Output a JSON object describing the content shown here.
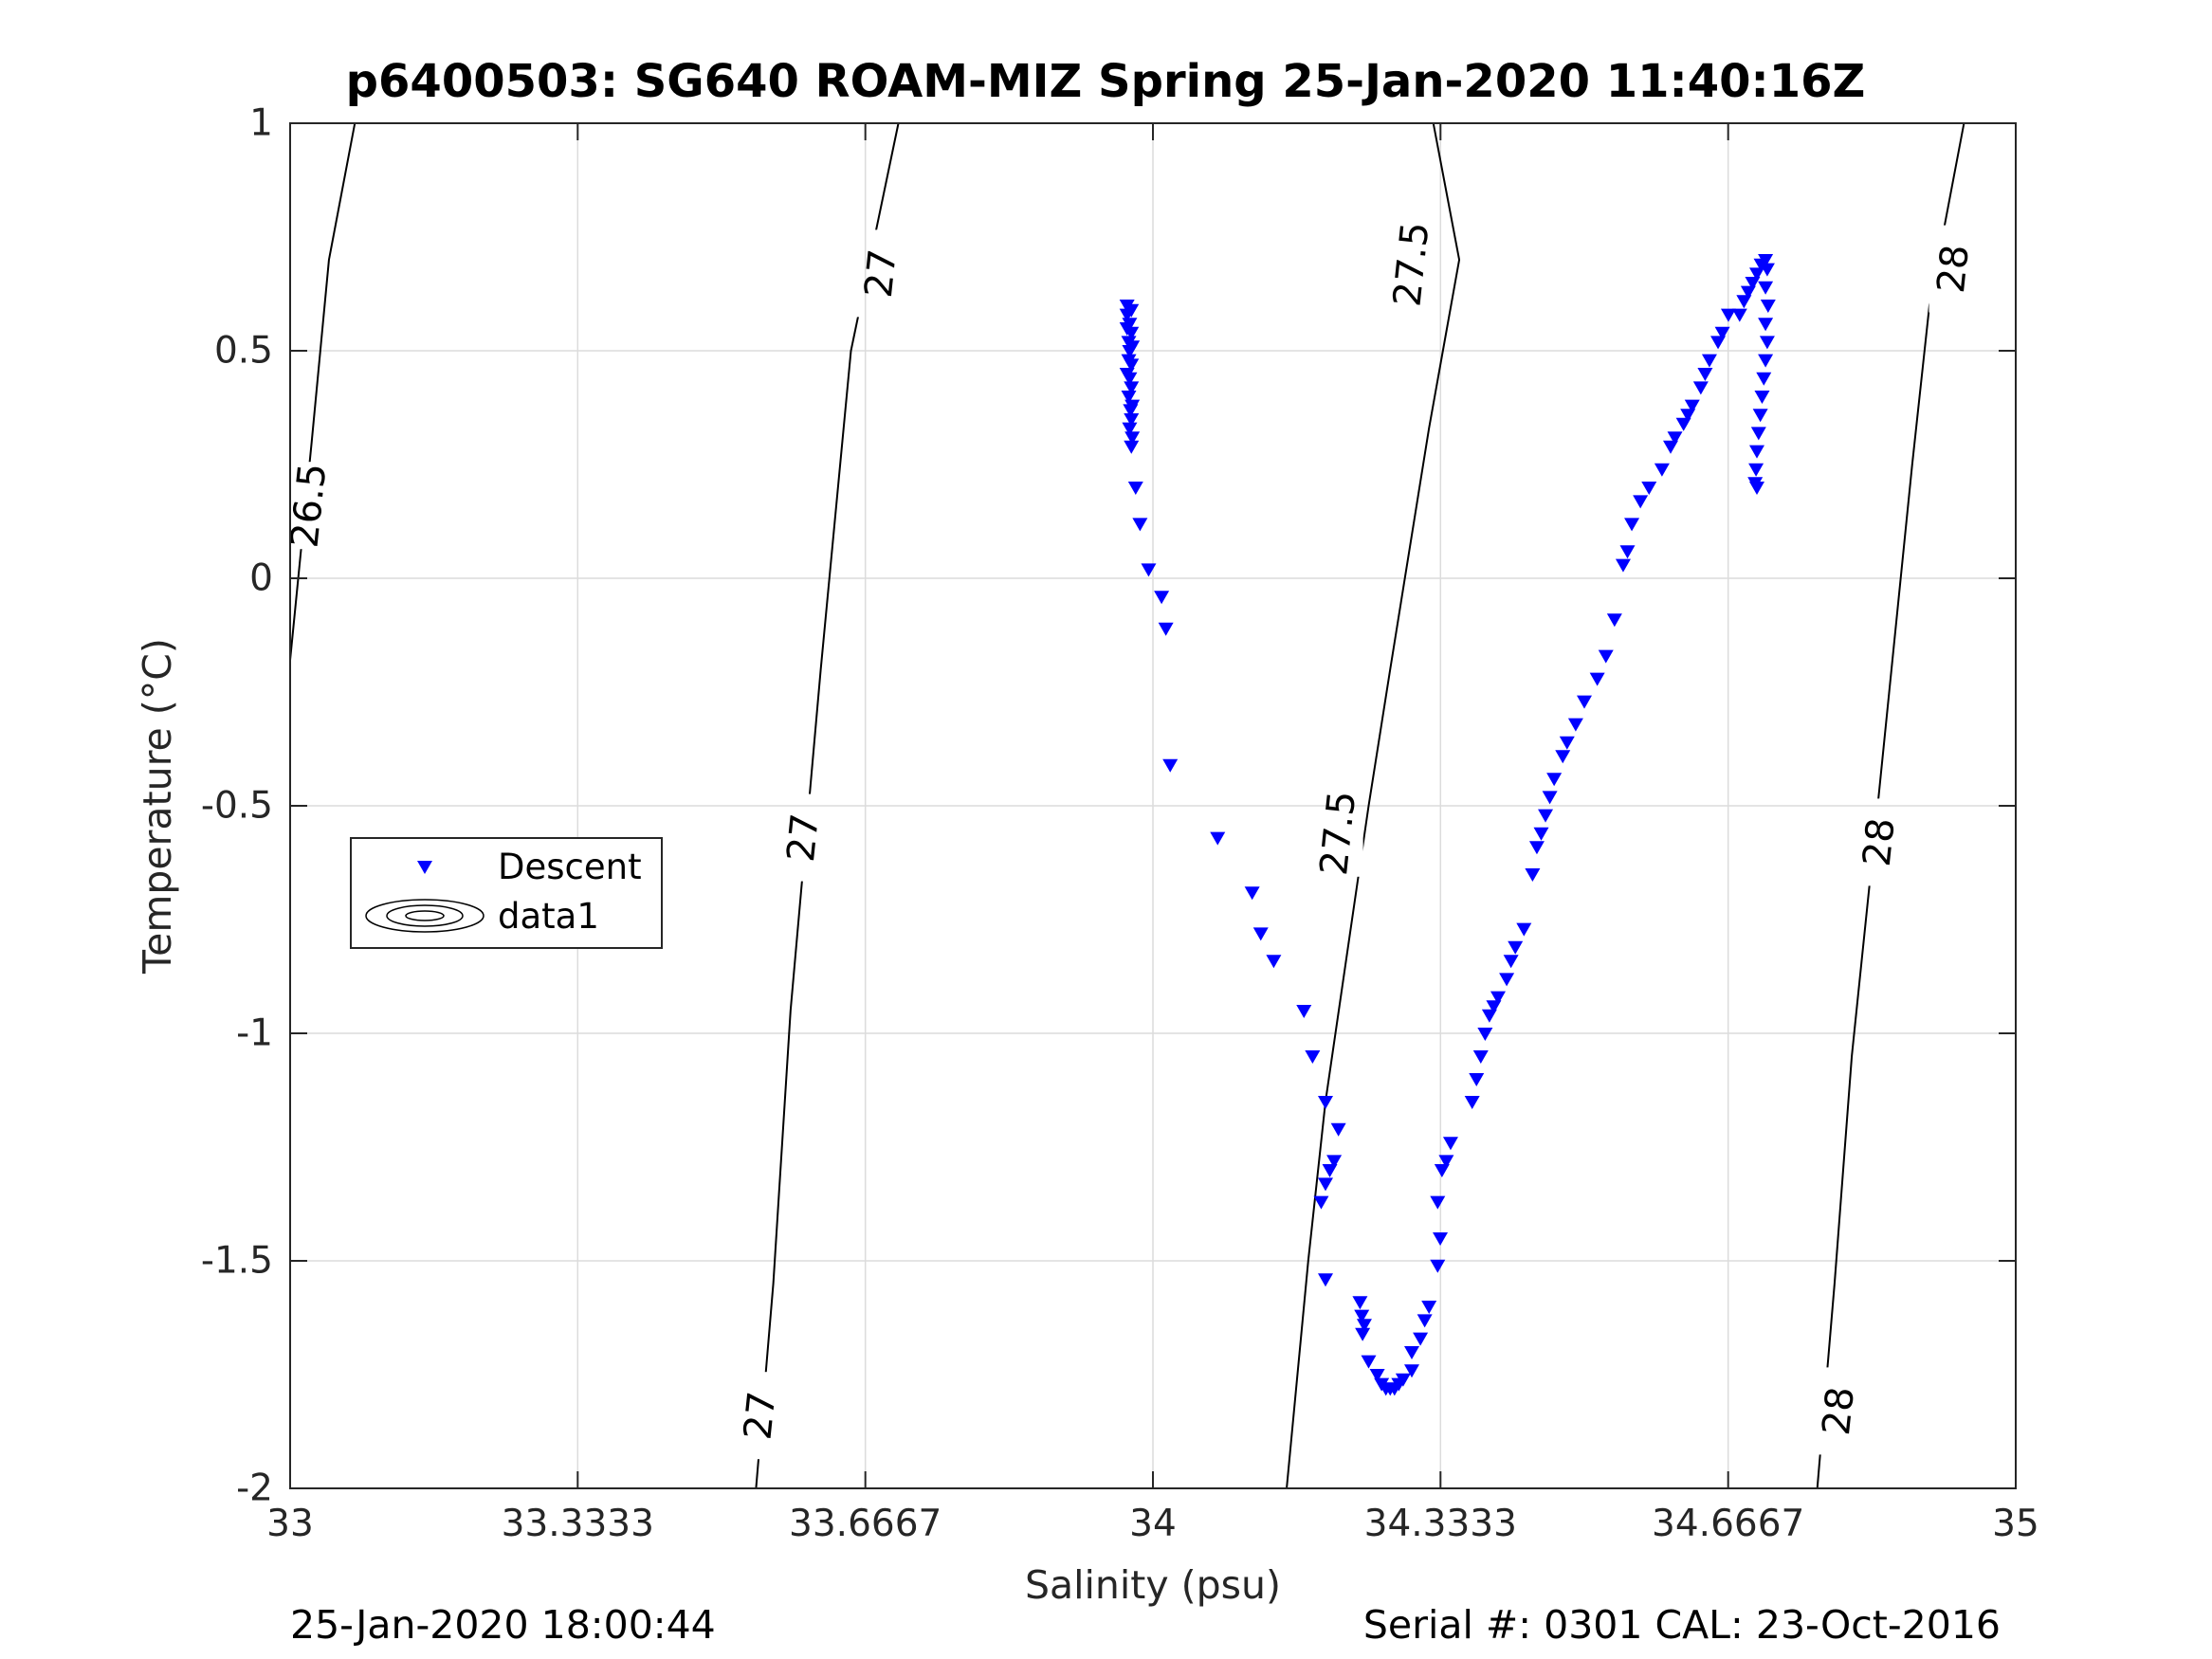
{
  "chart_data": {
    "type": "scatter",
    "title": "p6400503: SG640 ROAM-MIZ Spring 25-Jan-2020 11:40:16Z",
    "xlabel": "Salinity (psu)",
    "ylabel": "Temperature (°C)",
    "xlim": [
      33,
      35
    ],
    "ylim": [
      -2,
      1
    ],
    "grid": true,
    "x_ticks": [
      33,
      33.3333,
      33.6667,
      34,
      34.3333,
      34.6667,
      35
    ],
    "x_tick_labels": [
      "33",
      "33.3333",
      "33.6667",
      "34",
      "34.3333",
      "34.6667",
      "35"
    ],
    "y_ticks": [
      1,
      0.5,
      0,
      -0.5,
      -1,
      -1.5,
      -2
    ],
    "y_tick_labels": [
      "1",
      "0.5",
      "0",
      "-0.5",
      "-1",
      "-1.5",
      "-2"
    ],
    "legend": {
      "location": "west",
      "entries": [
        {
          "label": "Descent",
          "marker": "down-triangle",
          "color": "#0000ff"
        },
        {
          "label": "data1",
          "marker": "contour",
          "color": "#000000"
        }
      ]
    },
    "series": [
      {
        "name": "Descent",
        "marker": "down-triangle",
        "color": "#0000ff",
        "points": [
          [
            33.97,
            0.6
          ],
          [
            33.975,
            0.59
          ],
          [
            33.97,
            0.58
          ],
          [
            33.973,
            0.56
          ],
          [
            33.97,
            0.55
          ],
          [
            33.975,
            0.54
          ],
          [
            33.972,
            0.52
          ],
          [
            33.976,
            0.51
          ],
          [
            33.973,
            0.5
          ],
          [
            33.972,
            0.48
          ],
          [
            33.975,
            0.47
          ],
          [
            33.97,
            0.45
          ],
          [
            33.973,
            0.44
          ],
          [
            33.975,
            0.42
          ],
          [
            33.972,
            0.4
          ],
          [
            33.976,
            0.38
          ],
          [
            33.974,
            0.37
          ],
          [
            33.975,
            0.35
          ],
          [
            33.973,
            0.33
          ],
          [
            33.976,
            0.31
          ],
          [
            33.975,
            0.29
          ],
          [
            33.98,
            0.2
          ],
          [
            33.985,
            0.12
          ],
          [
            33.995,
            0.02
          ],
          [
            34.01,
            -0.04
          ],
          [
            34.015,
            -0.11
          ],
          [
            34.02,
            -0.41
          ],
          [
            34.075,
            -0.57
          ],
          [
            34.115,
            -0.69
          ],
          [
            34.125,
            -0.78
          ],
          [
            34.14,
            -0.84
          ],
          [
            34.175,
            -0.95
          ],
          [
            34.185,
            -1.05
          ],
          [
            34.2,
            -1.15
          ],
          [
            34.215,
            -1.21
          ],
          [
            34.21,
            -1.28
          ],
          [
            34.205,
            -1.3
          ],
          [
            34.2,
            -1.33
          ],
          [
            34.195,
            -1.37
          ],
          [
            34.2,
            -1.54
          ],
          [
            34.24,
            -1.59
          ],
          [
            34.242,
            -1.62
          ],
          [
            34.245,
            -1.64
          ],
          [
            34.243,
            -1.66
          ],
          [
            34.25,
            -1.72
          ],
          [
            34.26,
            -1.75
          ],
          [
            34.265,
            -1.77
          ],
          [
            34.27,
            -1.78
          ],
          [
            34.275,
            -1.78
          ],
          [
            34.28,
            -1.78
          ],
          [
            34.285,
            -1.77
          ],
          [
            34.29,
            -1.76
          ],
          [
            34.3,
            -1.74
          ],
          [
            34.3,
            -1.7
          ],
          [
            34.31,
            -1.67
          ],
          [
            34.315,
            -1.63
          ],
          [
            34.32,
            -1.6
          ],
          [
            34.33,
            -1.51
          ],
          [
            34.333,
            -1.45
          ],
          [
            34.33,
            -1.37
          ],
          [
            34.335,
            -1.3
          ],
          [
            34.34,
            -1.28
          ],
          [
            34.345,
            -1.24
          ],
          [
            34.37,
            -1.15
          ],
          [
            34.375,
            -1.1
          ],
          [
            34.38,
            -1.05
          ],
          [
            34.385,
            -1.0
          ],
          [
            34.39,
            -0.96
          ],
          [
            34.395,
            -0.94
          ],
          [
            34.4,
            -0.92
          ],
          [
            34.41,
            -0.88
          ],
          [
            34.415,
            -0.84
          ],
          [
            34.42,
            -0.81
          ],
          [
            34.43,
            -0.77
          ],
          [
            34.44,
            -0.65
          ],
          [
            34.445,
            -0.59
          ],
          [
            34.45,
            -0.56
          ],
          [
            34.455,
            -0.52
          ],
          [
            34.46,
            -0.48
          ],
          [
            34.465,
            -0.44
          ],
          [
            34.475,
            -0.39
          ],
          [
            34.48,
            -0.36
          ],
          [
            34.49,
            -0.32
          ],
          [
            34.5,
            -0.27
          ],
          [
            34.515,
            -0.22
          ],
          [
            34.525,
            -0.17
          ],
          [
            34.535,
            -0.09
          ],
          [
            34.545,
            0.03
          ],
          [
            34.55,
            0.06
          ],
          [
            34.555,
            0.12
          ],
          [
            34.565,
            0.17
          ],
          [
            34.575,
            0.2
          ],
          [
            34.59,
            0.24
          ],
          [
            34.6,
            0.29
          ],
          [
            34.605,
            0.31
          ],
          [
            34.615,
            0.34
          ],
          [
            34.62,
            0.36
          ],
          [
            34.625,
            0.38
          ],
          [
            34.635,
            0.42
          ],
          [
            34.64,
            0.45
          ],
          [
            34.645,
            0.48
          ],
          [
            34.655,
            0.52
          ],
          [
            34.66,
            0.54
          ],
          [
            34.667,
            0.58
          ],
          [
            34.68,
            0.58
          ],
          [
            34.685,
            0.61
          ],
          [
            34.69,
            0.63
          ],
          [
            34.695,
            0.65
          ],
          [
            34.7,
            0.67
          ],
          [
            34.705,
            0.69
          ],
          [
            34.71,
            0.7
          ],
          [
            34.712,
            0.68
          ],
          [
            34.71,
            0.64
          ],
          [
            34.713,
            0.6
          ],
          [
            34.71,
            0.56
          ],
          [
            34.712,
            0.52
          ],
          [
            34.71,
            0.48
          ],
          [
            34.708,
            0.44
          ],
          [
            34.706,
            0.4
          ],
          [
            34.704,
            0.36
          ],
          [
            34.702,
            0.32
          ],
          [
            34.7,
            0.28
          ],
          [
            34.699,
            0.24
          ],
          [
            34.698,
            0.21
          ],
          [
            34.7,
            0.2
          ]
        ]
      }
    ],
    "isopycnals": [
      {
        "label": "26.5",
        "points": [
          [
            33.0,
            -0.18
          ],
          [
            33.025,
            0.3
          ],
          [
            33.045,
            0.7
          ],
          [
            33.075,
            1.0
          ]
        ],
        "labels_at": [
          [
            33.022,
            0.16
          ]
        ]
      },
      {
        "label": "27",
        "points": [
          [
            33.54,
            -2.0
          ],
          [
            33.56,
            -1.55
          ],
          [
            33.58,
            -0.95
          ],
          [
            33.615,
            -0.2
          ],
          [
            33.65,
            0.5
          ],
          [
            33.705,
            1.0
          ]
        ],
        "labels_at": [
          [
            33.685,
            0.67
          ],
          [
            33.595,
            -0.57
          ],
          [
            33.545,
            -1.84
          ]
        ]
      },
      {
        "label": "27.5",
        "points": [
          [
            34.155,
            -2.0
          ],
          [
            34.18,
            -1.5
          ],
          [
            34.2,
            -1.15
          ],
          [
            34.25,
            -0.5
          ],
          [
            34.275,
            -0.2
          ],
          [
            34.32,
            0.33
          ],
          [
            34.355,
            0.7
          ],
          [
            34.325,
            1.0
          ]
        ],
        "labels_at": [
          [
            34.3,
            0.69
          ],
          [
            34.215,
            -0.56
          ]
        ]
      },
      {
        "label": "28",
        "points": [
          [
            34.77,
            -2.0
          ],
          [
            34.79,
            -1.55
          ],
          [
            34.81,
            -1.05
          ],
          [
            34.84,
            -0.5
          ],
          [
            34.88,
            0.25
          ],
          [
            34.9,
            0.6
          ],
          [
            34.94,
            1.0
          ]
        ],
        "labels_at": [
          [
            34.928,
            0.68
          ],
          [
            34.842,
            -0.58
          ],
          [
            34.795,
            -1.83
          ]
        ]
      }
    ]
  },
  "footer": {
    "left": "25-Jan-2020 18:00:44",
    "right": "Serial #: 0301  CAL: 23-Oct-2016"
  }
}
